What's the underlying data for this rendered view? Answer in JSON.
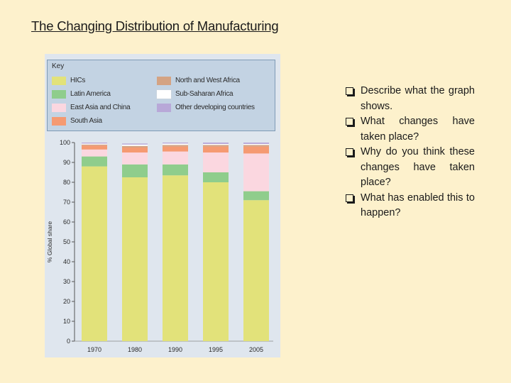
{
  "slide": {
    "title": "The Changing Distribution of Manufacturing",
    "bullets": [
      "Describe what the graph shows.",
      "What changes have taken place?",
      "Why do you think these changes have taken place?",
      "What has enabled this to happen?"
    ]
  },
  "chart_data": {
    "type": "bar",
    "stacked": true,
    "title": "",
    "key_title": "Key",
    "ylabel": "% Global share",
    "xlabel": "",
    "ylim": [
      0,
      100
    ],
    "yticks": [
      0,
      10,
      20,
      30,
      40,
      50,
      60,
      70,
      80,
      90,
      100
    ],
    "categories": [
      "1970",
      "1980",
      "1990",
      "1995",
      "2005"
    ],
    "legend_placement": "top",
    "series": [
      {
        "name": "HICs",
        "color": "#e2e27a",
        "values": [
          88,
          82.5,
          83.5,
          80,
          71
        ]
      },
      {
        "name": "Latin America",
        "color": "#8fcd8c",
        "values": [
          5,
          6.5,
          5.5,
          5,
          4.5
        ]
      },
      {
        "name": "East Asia and China",
        "color": "#fbd7e0",
        "values": [
          3.5,
          6,
          6.5,
          10,
          19
        ]
      },
      {
        "name": "South Asia",
        "color": "#f59a72",
        "values": [
          2,
          2.5,
          2.5,
          3,
          3.5
        ]
      },
      {
        "name": "North and West Africa",
        "color": "#d4a383",
        "values": [
          0.5,
          0.8,
          0.8,
          0.8,
          0.8
        ]
      },
      {
        "name": "Sub-Saharan Africa",
        "color": "#ffffff",
        "values": [
          0.5,
          0.7,
          0.7,
          0.5,
          0.5
        ]
      },
      {
        "name": "Other developing countries",
        "color": "#b8a8d8",
        "values": [
          0.5,
          0.5,
          0.5,
          0.7,
          0.7
        ]
      }
    ]
  }
}
